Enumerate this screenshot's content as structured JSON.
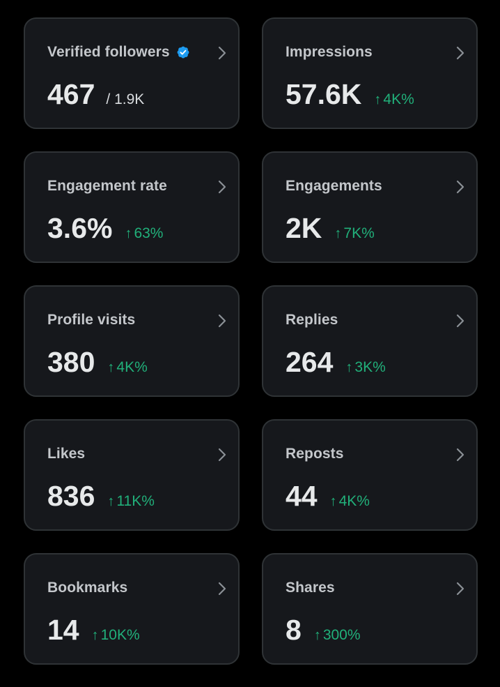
{
  "accent_color": "#1d9bf0",
  "positive_color": "#21b07a",
  "cards": [
    {
      "label": "Verified followers",
      "value": "467",
      "sub": "/ 1.9K",
      "verified_icon": "verified-badge-icon"
    },
    {
      "label": "Impressions",
      "value": "57.6K",
      "change_arrow": "↑",
      "change": "4K%"
    },
    {
      "label": "Engagement rate",
      "value": "3.6%",
      "change_arrow": "↑",
      "change": "63%"
    },
    {
      "label": "Engagements",
      "value": "2K",
      "change_arrow": "↑",
      "change": "7K%"
    },
    {
      "label": "Profile visits",
      "value": "380",
      "change_arrow": "↑",
      "change": "4K%"
    },
    {
      "label": "Replies",
      "value": "264",
      "change_arrow": "↑",
      "change": "3K%"
    },
    {
      "label": "Likes",
      "value": "836",
      "change_arrow": "↑",
      "change": "11K%"
    },
    {
      "label": "Reposts",
      "value": "44",
      "change_arrow": "↑",
      "change": "4K%"
    },
    {
      "label": "Bookmarks",
      "value": "14",
      "change_arrow": "↑",
      "change": "10K%"
    },
    {
      "label": "Shares",
      "value": "8",
      "change_arrow": "↑",
      "change": "300%"
    }
  ]
}
